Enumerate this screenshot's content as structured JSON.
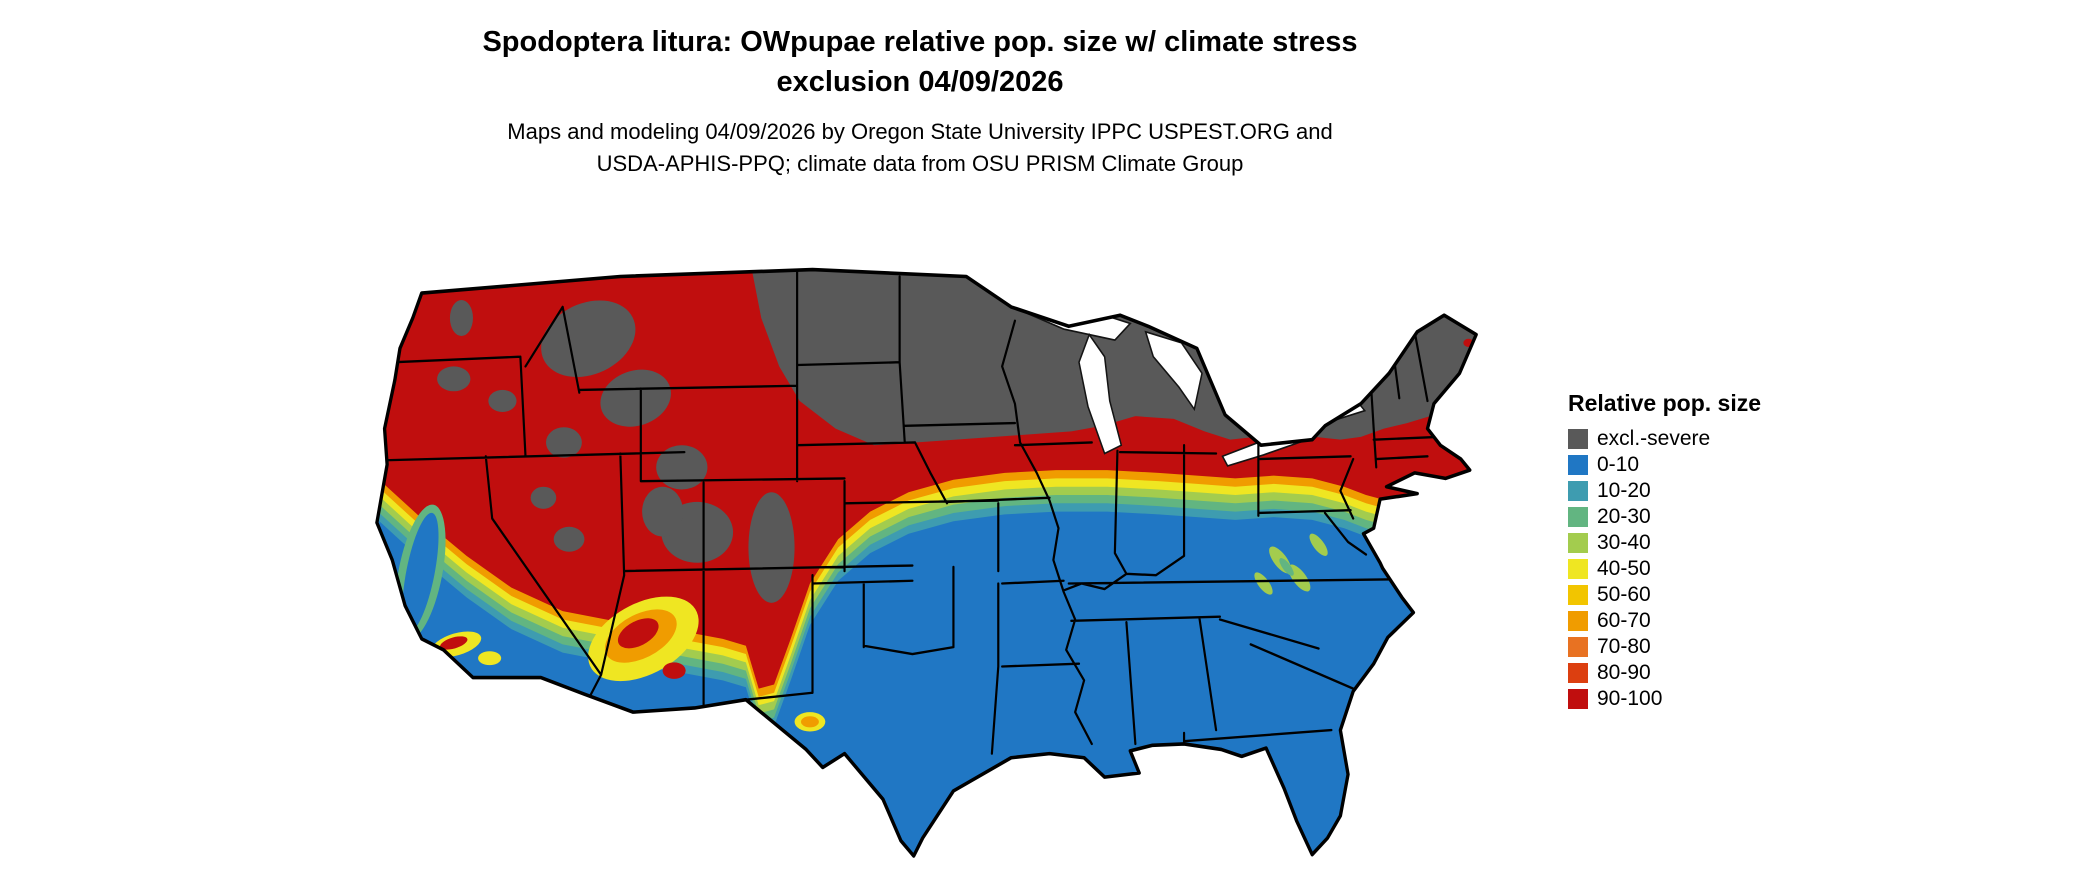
{
  "title": {
    "line1": "Spodoptera litura: OWpupae relative pop. size w/ climate stress",
    "line2": "exclusion 04/09/2026"
  },
  "subtitle": {
    "line1": "Maps and modeling 04/09/2026 by Oregon State University IPPC USPEST.ORG and",
    "line2": "USDA-APHIS-PPQ; climate data from OSU PRISM Climate Group"
  },
  "legend": {
    "title": "Relative pop. size",
    "items": [
      {
        "label": "excl.-severe",
        "color": "#595959"
      },
      {
        "label": "0-10",
        "color": "#2077C4"
      },
      {
        "label": "10-20",
        "color": "#3E9CB0"
      },
      {
        "label": "20-30",
        "color": "#62B581"
      },
      {
        "label": "30-40",
        "color": "#A3CC4E"
      },
      {
        "label": "40-50",
        "color": "#EFE622"
      },
      {
        "label": "50-60",
        "color": "#F2C500"
      },
      {
        "label": "60-70",
        "color": "#F09C00"
      },
      {
        "label": "70-80",
        "color": "#E87222"
      },
      {
        "label": "80-90",
        "color": "#DC3F10"
      },
      {
        "label": "90-100",
        "color": "#C00E0E"
      }
    ]
  },
  "map": {
    "region": "Continental United States",
    "water_color": "#ffffff",
    "border_color": "#000000"
  }
}
